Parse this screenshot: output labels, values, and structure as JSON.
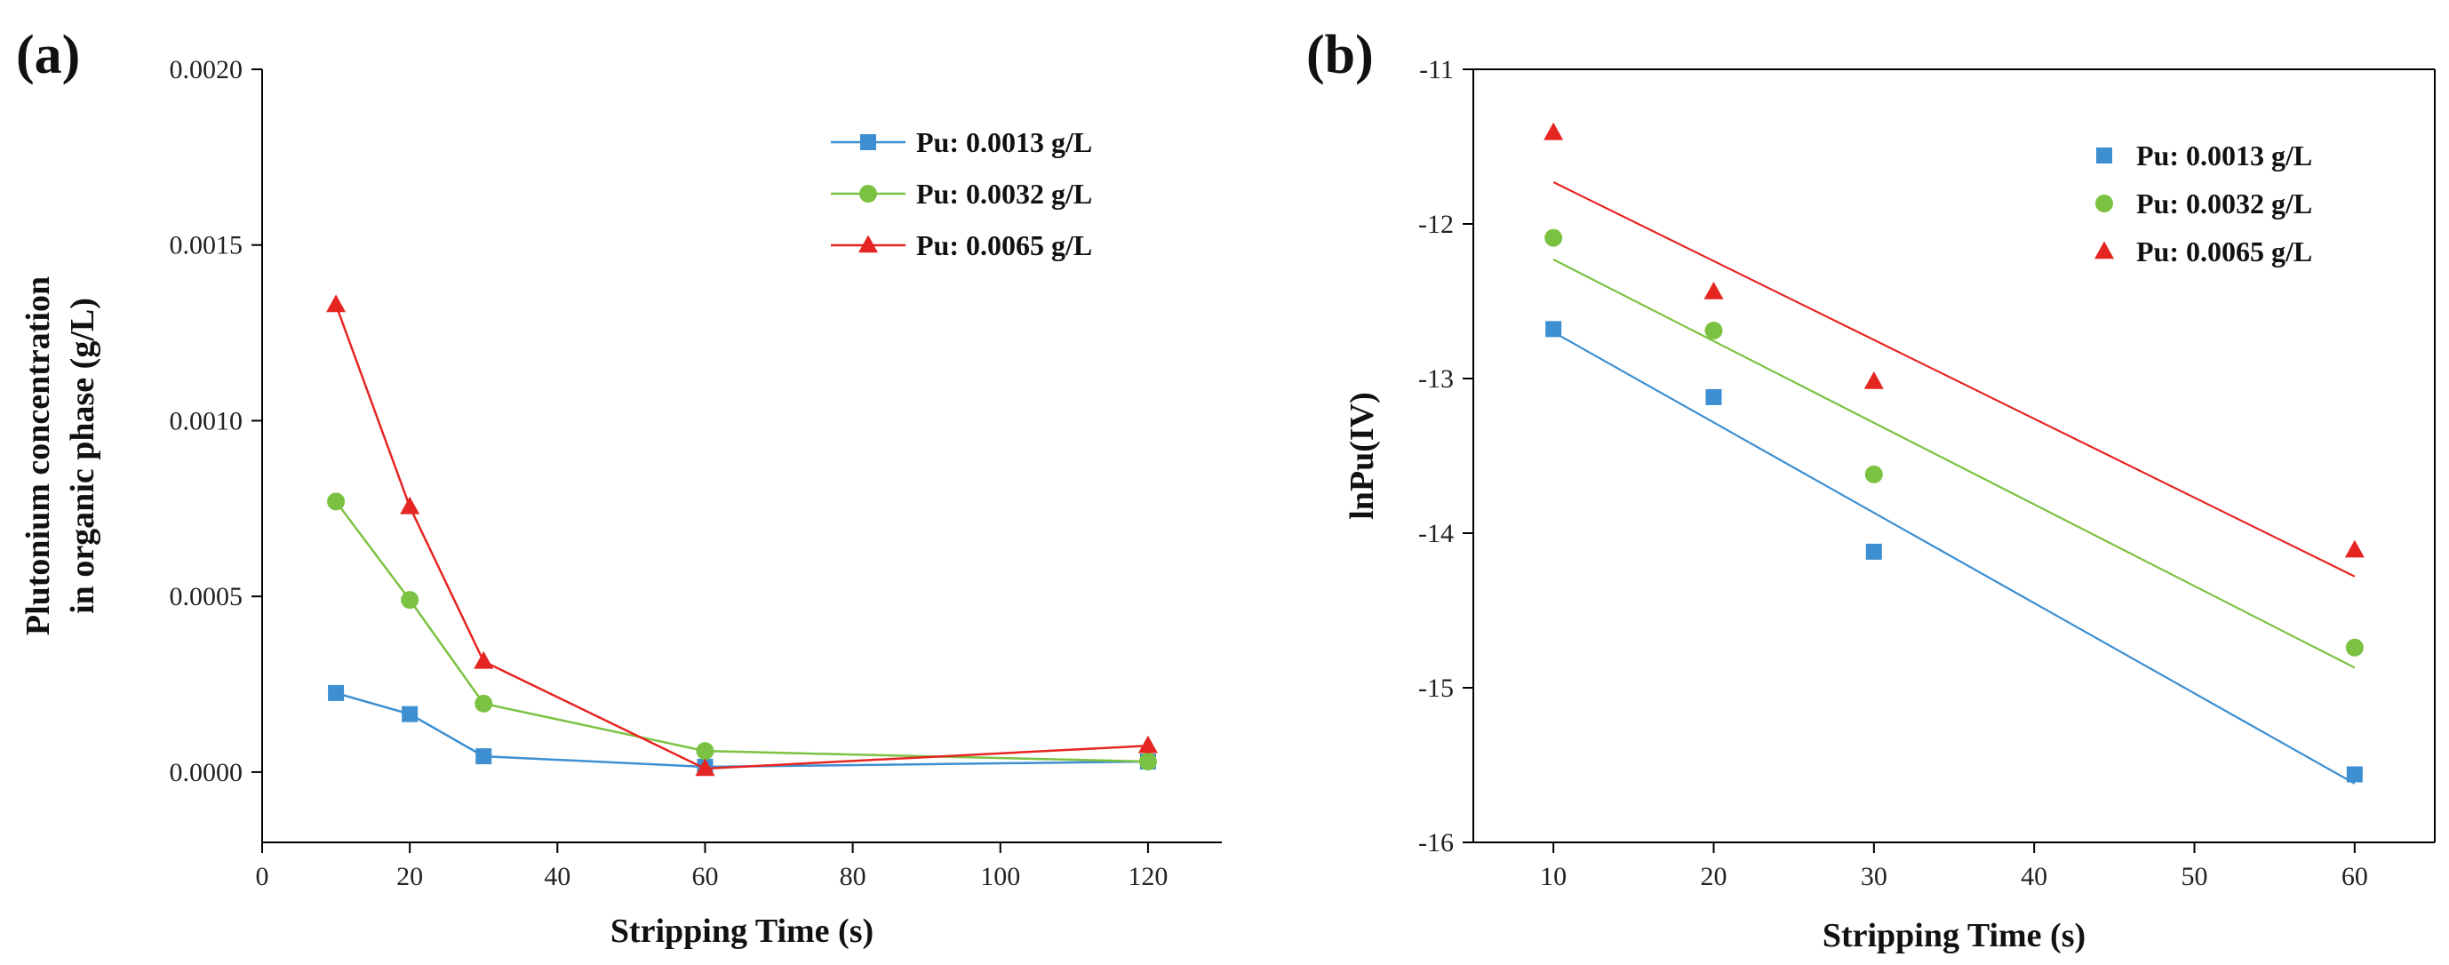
{
  "chart_data": [
    {
      "panel_label": "(a)",
      "type": "line",
      "xlabel": "Stripping Time (s)",
      "ylabel_lines": [
        "Plutonium concentration",
        "in organic phase (g/L)"
      ],
      "xlim": [
        0,
        130
      ],
      "ylim": [
        -0.0002,
        0.002
      ],
      "xticks": [
        0,
        20,
        40,
        60,
        80,
        100,
        120
      ],
      "yticks": [
        0.0,
        0.0005,
        0.001,
        0.0015,
        0.002
      ],
      "xtick_labels": [
        "0",
        "20",
        "40",
        "60",
        "80",
        "100",
        "120"
      ],
      "ytick_labels": [
        "0.0000",
        "0.0005",
        "0.0010",
        "0.0015",
        "0.0020"
      ],
      "legend_position": "top-right",
      "series": [
        {
          "name": "Pu: 0.0013 g/L",
          "marker": "square",
          "color": "#3d8fd1",
          "x": [
            10,
            20,
            30,
            60,
            120
          ],
          "y": [
            0.000225,
            0.000165,
            4.5e-05,
            1.5e-05,
            3e-05
          ]
        },
        {
          "name": "Pu: 0.0032 g/L",
          "marker": "circle",
          "color": "#7cc242",
          "x": [
            10,
            20,
            30,
            60,
            120
          ],
          "y": [
            0.00077,
            0.00049,
            0.000195,
            6e-05,
            3e-05
          ]
        },
        {
          "name": "Pu: 0.0065 g/L",
          "marker": "triangle",
          "color": "#e52521",
          "x": [
            10,
            20,
            30,
            60,
            120
          ],
          "y": [
            0.00133,
            0.000755,
            0.000315,
            1e-05,
            7.5e-05
          ]
        }
      ]
    },
    {
      "panel_label": "(b)",
      "type": "scatter",
      "xlabel": "Stripping Time (s)",
      "ylabel_lines": [
        "lnPu(IV)"
      ],
      "xlim": [
        5,
        65
      ],
      "ylim": [
        -16,
        -11
      ],
      "xticks": [
        10,
        20,
        30,
        40,
        50,
        60
      ],
      "yticks": [
        -11,
        -12,
        -13,
        -14,
        -15,
        -16
      ],
      "xtick_labels": [
        "10",
        "20",
        "30",
        "40",
        "50",
        "60"
      ],
      "ytick_labels": [
        "-11",
        "-12",
        "-13",
        "-14",
        "-15",
        "-16"
      ],
      "legend_position": "top-right",
      "series": [
        {
          "name": "Pu: 0.0013 g/L",
          "marker": "square",
          "color": "#3d8fd1",
          "x": [
            10,
            20,
            30,
            60
          ],
          "y": [
            -12.68,
            -13.12,
            -14.12,
            -15.56
          ],
          "fit_line": [
            [
              10,
              -12.7
            ],
            [
              60,
              -15.62
            ]
          ]
        },
        {
          "name": "Pu: 0.0032 g/L",
          "marker": "circle",
          "color": "#7cc242",
          "x": [
            10,
            20,
            30,
            60
          ],
          "y": [
            -12.09,
            -12.69,
            -13.62,
            -14.74
          ],
          "fit_line": [
            [
              10,
              -12.23
            ],
            [
              60,
              -14.87
            ]
          ]
        },
        {
          "name": "Pu: 0.0065 g/L",
          "marker": "triangle",
          "color": "#e52521",
          "x": [
            10,
            20,
            30,
            60
          ],
          "y": [
            -11.41,
            -12.44,
            -13.02,
            -14.11
          ],
          "fit_line": [
            [
              10,
              -11.73
            ],
            [
              60,
              -14.28
            ]
          ]
        }
      ]
    }
  ]
}
